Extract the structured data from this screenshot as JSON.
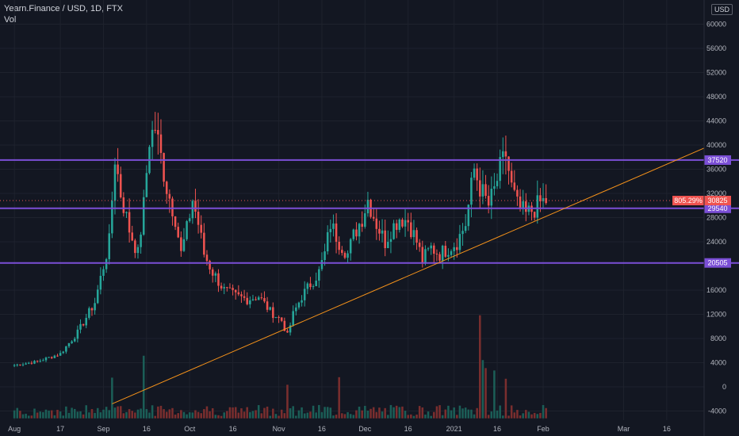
{
  "header": {
    "symbol": "Yearn.Finance / USD, 1D, FTX",
    "volume_label": "Vol",
    "currency_badge": "USD"
  },
  "colors": {
    "background": "#131722",
    "grid": "#1e222d",
    "up": "#26a69a",
    "down": "#ef5350",
    "up_vol": "#1b5e57",
    "down_vol": "#7a2e2e",
    "level": "#7b4fd6",
    "trendline": "#f7931a",
    "price_tag": "#ef5350"
  },
  "chart_data": {
    "type": "candlestick",
    "title": "Yearn.Finance / USD, 1D, FTX",
    "ylim": [
      -5500,
      64000
    ],
    "y_ticks": [
      -4000,
      0,
      4000,
      8000,
      12000,
      16000,
      20505,
      24000,
      28000,
      32000,
      36000,
      40000,
      44000,
      48000,
      52000,
      56000,
      60000
    ],
    "x_tick_labels": [
      "Aug",
      "17",
      "Sep",
      "16",
      "Oct",
      "16",
      "Nov",
      "16",
      "Dec",
      "16",
      "2021",
      "16",
      "Feb",
      "Mar",
      "16"
    ],
    "x_tick_days": [
      0,
      16,
      31,
      46,
      61,
      76,
      92,
      107,
      122,
      137,
      153,
      168,
      184,
      212,
      227
    ],
    "x_range_days": [
      -5,
      240
    ],
    "horizontal_levels": [
      {
        "label": "37520",
        "value": 37520
      },
      {
        "label": "29540",
        "value": 29540
      },
      {
        "label": "20505",
        "value": 20505
      }
    ],
    "trendline": {
      "from": {
        "day": 34,
        "price": -2800
      },
      "to": {
        "day": 240,
        "price": 39500
      }
    },
    "last_price": {
      "value": 30825,
      "label": "30825",
      "change_label": "805.29%"
    },
    "price_key_points": [
      [
        0,
        3600
      ],
      [
        8,
        4200
      ],
      [
        16,
        5500
      ],
      [
        22,
        9000
      ],
      [
        28,
        14000
      ],
      [
        33,
        24000
      ],
      [
        35,
        38000
      ],
      [
        37,
        32000
      ],
      [
        40,
        26000
      ],
      [
        43,
        22000
      ],
      [
        45,
        30000
      ],
      [
        47,
        41000
      ],
      [
        49,
        43000
      ],
      [
        51,
        38000
      ],
      [
        53,
        33000
      ],
      [
        56,
        28000
      ],
      [
        58,
        22000
      ],
      [
        60,
        26000
      ],
      [
        62,
        31000
      ],
      [
        64,
        27000
      ],
      [
        66,
        22000
      ],
      [
        69,
        19000
      ],
      [
        73,
        16000
      ],
      [
        77,
        15000
      ],
      [
        81,
        14500
      ],
      [
        85,
        15000
      ],
      [
        89,
        12500
      ],
      [
        93,
        11000
      ],
      [
        95,
        8500
      ],
      [
        97,
        12000
      ],
      [
        100,
        15000
      ],
      [
        103,
        17000
      ],
      [
        106,
        19000
      ],
      [
        108,
        22000
      ],
      [
        110,
        27000
      ],
      [
        113,
        24000
      ],
      [
        116,
        22000
      ],
      [
        118,
        25000
      ],
      [
        121,
        28000
      ],
      [
        123,
        31000
      ],
      [
        126,
        27000
      ],
      [
        129,
        24000
      ],
      [
        131,
        26000
      ],
      [
        134,
        28000
      ],
      [
        137,
        27500
      ],
      [
        140,
        24000
      ],
      [
        142,
        21000
      ],
      [
        145,
        23000
      ],
      [
        148,
        22000
      ],
      [
        151,
        23000
      ],
      [
        154,
        24000
      ],
      [
        157,
        27000
      ],
      [
        160,
        36000
      ],
      [
        162,
        33000
      ],
      [
        165,
        30000
      ],
      [
        167,
        32500
      ],
      [
        169,
        36000
      ],
      [
        171,
        38500
      ],
      [
        173,
        33000
      ],
      [
        175,
        30000
      ],
      [
        178,
        28500
      ],
      [
        181,
        29500
      ],
      [
        183,
        30500
      ],
      [
        185,
        30825
      ]
    ]
  }
}
